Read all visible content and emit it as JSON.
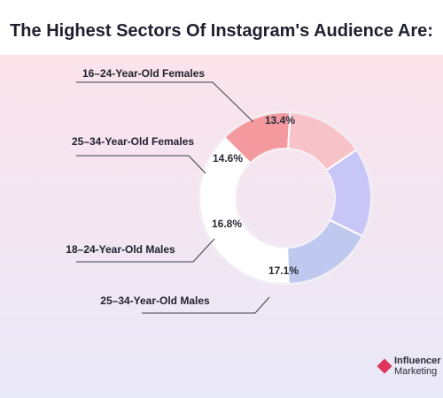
{
  "title": "The Highest Sectors Of Instagram's Audience Are:",
  "logo": {
    "line1": "Influencer",
    "line2": "Marketing"
  },
  "chart_data": {
    "type": "pie",
    "categories": [
      "16–24-Year-Old Females",
      "25–34-Year-Old Females",
      "18–24-Year-Old Males",
      "25–34-Year-Old Males",
      ""
    ],
    "values": [
      13.4,
      14.6,
      16.8,
      17.1,
      38.1
    ],
    "labels": [
      "13.4%",
      "14.6%",
      "16.8%",
      "17.1%",
      ""
    ],
    "colors": [
      "#f49a9f",
      "#f7c2c8",
      "#c8c6f7",
      "#bfc8ee",
      "#ffffff"
    ]
  }
}
